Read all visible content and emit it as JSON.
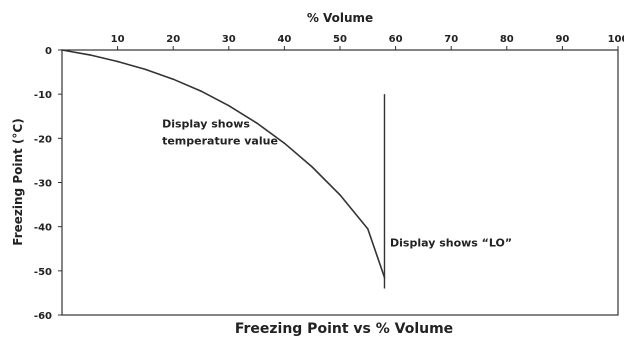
{
  "chart_data": {
    "type": "line",
    "title": "Freezing Point vs % Volume",
    "xlabel": "% Volume",
    "ylabel": "Freezing Point (°C)",
    "xlim": [
      0,
      100
    ],
    "ylim": [
      -60,
      0
    ],
    "x_ticks": [
      10,
      20,
      30,
      40,
      50,
      60,
      70,
      80,
      90,
      100
    ],
    "y_ticks": [
      0,
      -10,
      -20,
      -30,
      -40,
      -50,
      -60
    ],
    "grid": false,
    "legend": "none",
    "series": [
      {
        "x": [
          0,
          5,
          10,
          15,
          20,
          25,
          30,
          35,
          40,
          45,
          50,
          55,
          58
        ],
        "y": [
          0,
          -1.1,
          -2.6,
          -4.4,
          -6.6,
          -9.3,
          -12.6,
          -16.5,
          -21.1,
          -26.5,
          -32.8,
          -40.5,
          -51.5
        ],
        "color": "#333333"
      }
    ],
    "marker_line": {
      "x": 58,
      "y_from": -10,
      "y_to": -54,
      "color": "#333333"
    },
    "annotations": [
      {
        "lines": [
          "Display shows",
          "temperature value"
        ],
        "x": 18,
        "y": -17.5
      },
      {
        "lines": [
          "Display shows “LO”"
        ],
        "x": 59,
        "y": -44.5
      }
    ]
  }
}
